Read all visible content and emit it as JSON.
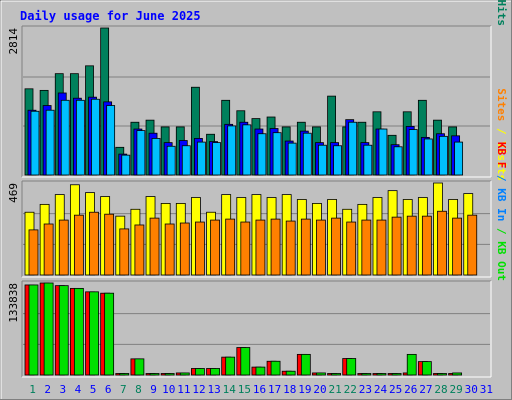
{
  "title": "Daily usage for June 2025",
  "colors": {
    "background": "#c0c0c0",
    "hits": "#00805c",
    "files": "#0000ff",
    "pages": "#00c0ff",
    "visits": "#ffff00",
    "sites": "#ff8000",
    "kbf": "#ff0000",
    "kbin": "#0080ff",
    "kbout": "#00e000",
    "weekend_day": "#00805c",
    "weekday": "#0000ff"
  },
  "chart_data": {
    "type": "bar",
    "title": "Daily usage for June 2025",
    "categories": [
      "1",
      "2",
      "3",
      "4",
      "5",
      "6",
      "7",
      "8",
      "9",
      "10",
      "11",
      "12",
      "13",
      "14",
      "15",
      "16",
      "17",
      "18",
      "19",
      "20",
      "21",
      "22",
      "23",
      "24",
      "25",
      "26",
      "27",
      "28",
      "29",
      "30",
      "31"
    ],
    "weekend_days": [
      1,
      7,
      8,
      14,
      15,
      21,
      22,
      28,
      29
    ],
    "panels": [
      {
        "id": "hits-files-pages",
        "ymax_label": "2814",
        "ymax": 2814,
        "ylabel_parts": [
          {
            "text": "Pages",
            "color_key": "pages"
          },
          {
            "text": " / ",
            "color_key": "files"
          },
          {
            "text": "Files",
            "color_key": "files"
          },
          {
            "text": " / ",
            "color_key": "hits"
          },
          {
            "text": "Hits",
            "color_key": "hits"
          }
        ],
        "series": [
          {
            "name": "Hits",
            "color_key": "hits",
            "values": [
              1650,
              1620,
              1940,
              1940,
              2090,
              2814,
              530,
              1010,
              1050,
              920,
              920,
              1680,
              780,
              1430,
              1230,
              1080,
              1110,
              920,
              1010,
              920,
              1510,
              920,
              1010,
              1210,
              760,
              1210,
              1430,
              1050,
              920,
              null,
              null
            ]
          },
          {
            "name": "Files",
            "color_key": "files",
            "values": [
              1240,
              1330,
              1570,
              1470,
              1490,
              1400,
              400,
              880,
              800,
              620,
              660,
              700,
              640,
              970,
              1010,
              880,
              890,
              650,
              840,
              620,
              620,
              1060,
              620,
              880,
              580,
              930,
              720,
              790,
              750,
              null,
              null
            ]
          },
          {
            "name": "Pages",
            "color_key": "pages",
            "values": [
              1220,
              1240,
              1430,
              1430,
              1450,
              1330,
              380,
              850,
              700,
              550,
              560,
              630,
              620,
              940,
              960,
              790,
              810,
              610,
              800,
              570,
              560,
              1010,
              570,
              880,
              540,
              870,
              690,
              740,
              630,
              null,
              null
            ]
          }
        ]
      },
      {
        "id": "visits-sites",
        "ymax_label": "469",
        "ymax": 469,
        "ylabel_parts": [
          {
            "text": "Sites",
            "color_key": "sites"
          },
          {
            "text": " / ",
            "color_key": "visits"
          },
          {
            "text": "Visits",
            "color_key": "visits"
          }
        ],
        "series": [
          {
            "name": "Visits",
            "color_key": "visits",
            "values": [
              320,
              360,
              410,
              460,
              420,
              400,
              300,
              335,
              400,
              365,
              365,
              395,
              320,
              410,
              395,
              410,
              395,
              410,
              385,
              365,
              385,
              335,
              360,
              395,
              430,
              385,
              395,
              469,
              385,
              415,
              null
            ]
          },
          {
            "name": "Sites",
            "color_key": "sites",
            "values": [
              230,
              260,
              280,
              305,
              320,
              310,
              235,
              255,
              290,
              260,
              265,
              270,
              280,
              285,
              270,
              280,
              285,
              275,
              285,
              280,
              290,
              270,
              280,
              280,
              295,
              300,
              300,
              325,
              290,
              305,
              null
            ]
          }
        ]
      },
      {
        "id": "kbytes",
        "ymax_label": "133838",
        "ymax": 133838,
        "ylabel_parts": [
          {
            "text": "KB F",
            "color_key": "kbf"
          },
          {
            "text": " / ",
            "color_key": "kbin"
          },
          {
            "text": "KB In",
            "color_key": "kbin"
          },
          {
            "text": " / ",
            "color_key": "kbout"
          },
          {
            "text": "KB Out",
            "color_key": "kbout"
          }
        ],
        "series": [
          {
            "name": "KB F",
            "color_key": "kbf",
            "values": [
              131000,
              133838,
              130000,
              126000,
              121000,
              119000,
              2200,
              23500,
              2200,
              2200,
              3000,
              9500,
              9500,
              26000,
              40000,
              11500,
              20000,
              5500,
              30000,
              3000,
              2200,
              24000,
              2200,
              2200,
              2200,
              3000,
              19500,
              2200,
              2200,
              null,
              null
            ]
          },
          {
            "name": "KB Out",
            "color_key": "kbout",
            "values": [
              131000,
              133838,
              130000,
              126000,
              121000,
              119000,
              2200,
              23500,
              2200,
              2200,
              3000,
              9500,
              9500,
              26000,
              40000,
              11500,
              20000,
              5500,
              30000,
              3000,
              2200,
              24000,
              2200,
              2200,
              2200,
              30000,
              19500,
              2200,
              3000,
              null,
              null
            ]
          }
        ]
      }
    ]
  }
}
